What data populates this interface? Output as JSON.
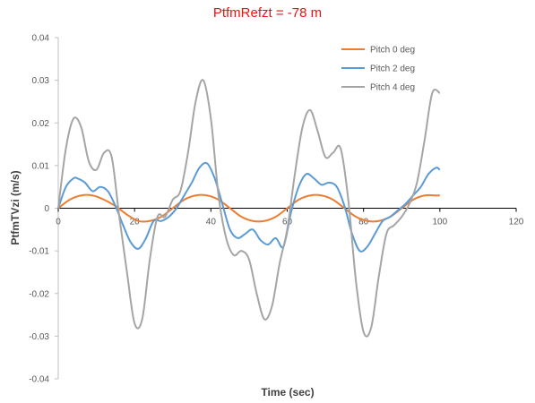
{
  "chart_data": {
    "type": "line",
    "title": "PtfmRefzt = -78 m",
    "xlabel": "Time (sec)",
    "ylabel": "PtfmTVzi  (m/s)",
    "xlim": [
      0,
      120
    ],
    "ylim": [
      -0.04,
      0.04
    ],
    "xticks": [
      0,
      20,
      40,
      60,
      80,
      100,
      120
    ],
    "yticks": [
      -0.04,
      -0.03,
      -0.02,
      -0.01,
      0,
      0.01,
      0.02,
      0.03,
      0.04
    ],
    "ytick_labels": [
      "-0.04",
      "-0.03",
      "-0.02",
      "-0.01",
      "0",
      "0.01",
      "0.02",
      "0.03",
      "0.04"
    ],
    "legend_position": "top-right",
    "grid": false,
    "series": [
      {
        "name": "Pitch 0 deg",
        "color": "#ed7d31",
        "x": [
          0,
          3,
          6,
          9,
          12,
          15,
          18,
          21,
          24,
          27,
          30,
          33,
          36,
          39,
          42,
          45,
          48,
          51,
          54,
          57,
          60,
          63,
          66,
          69,
          72,
          75,
          78,
          81,
          84,
          87,
          90,
          93,
          96,
          99,
          100
        ],
        "y": [
          0,
          0.002,
          0.003,
          0.003,
          0.002,
          0.0005,
          -0.0015,
          -0.003,
          -0.003,
          -0.002,
          0,
          0.002,
          0.003,
          0.003,
          0.002,
          0,
          -0.002,
          -0.003,
          -0.003,
          -0.002,
          0,
          0.002,
          0.003,
          0.003,
          0.002,
          0,
          -0.002,
          -0.003,
          -0.003,
          -0.002,
          0,
          0.002,
          0.003,
          0.003,
          0.003
        ]
      },
      {
        "name": "Pitch 2 deg",
        "color": "#5b9bd5",
        "x": [
          0,
          2,
          4,
          5,
          7,
          9,
          11,
          13,
          15,
          17,
          19,
          21,
          23,
          25,
          27,
          29,
          31,
          33,
          35,
          37,
          39,
          41,
          43,
          45,
          47,
          49,
          51,
          53,
          55,
          57,
          59,
          61,
          63,
          65,
          67,
          69,
          71,
          73,
          75,
          77,
          79,
          81,
          83,
          85,
          87,
          89,
          91,
          93,
          95,
          97,
          99,
          100
        ],
        "y": [
          0,
          0.005,
          0.007,
          0.007,
          0.006,
          0.004,
          0.005,
          0.004,
          0.0005,
          -0.004,
          -0.008,
          -0.0095,
          -0.007,
          -0.003,
          -0.003,
          -0.002,
          0,
          0.003,
          0.006,
          0.0095,
          0.0105,
          0.007,
          0.001,
          -0.005,
          -0.007,
          -0.006,
          -0.005,
          -0.0075,
          -0.0085,
          -0.007,
          -0.009,
          -0.001,
          0.005,
          0.008,
          0.007,
          0.0055,
          0.006,
          0.005,
          0.0005,
          -0.006,
          -0.01,
          -0.009,
          -0.006,
          -0.003,
          -0.002,
          -0.0005,
          0.001,
          0.003,
          0.005,
          0.008,
          0.0095,
          0.009
        ]
      },
      {
        "name": "Pitch 4 deg",
        "color": "#a5a5a5",
        "x": [
          0,
          2,
          4,
          6,
          8,
          10,
          12,
          14,
          16,
          18,
          20,
          22,
          24,
          26,
          28,
          30,
          32,
          34,
          36,
          38,
          40,
          42,
          44,
          46,
          48,
          50,
          52,
          54,
          56,
          58,
          60,
          62,
          64,
          66,
          68,
          70,
          72,
          74,
          76,
          78,
          80,
          82,
          84,
          86,
          88,
          90,
          92,
          94,
          96,
          98,
          100
        ],
        "y": [
          0,
          0.014,
          0.021,
          0.019,
          0.011,
          0.009,
          0.013,
          0.012,
          -0.002,
          -0.015,
          -0.027,
          -0.026,
          -0.012,
          -0.002,
          -0.002,
          0.002,
          0.004,
          0.013,
          0.025,
          0.03,
          0.021,
          0.003,
          -0.007,
          -0.011,
          -0.01,
          -0.012,
          -0.02,
          -0.026,
          -0.023,
          -0.013,
          -0.005,
          0.008,
          0.019,
          0.023,
          0.018,
          0.012,
          0.013,
          0.014,
          0.002,
          -0.017,
          -0.029,
          -0.028,
          -0.016,
          -0.006,
          -0.004,
          -0.002,
          0.001,
          0.006,
          0.016,
          0.027,
          0.027
        ]
      }
    ]
  }
}
